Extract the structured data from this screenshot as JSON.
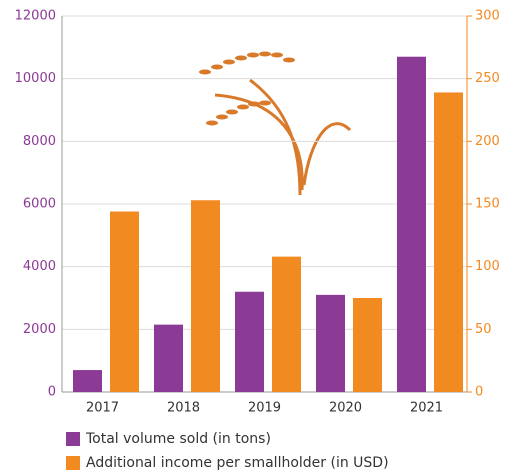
{
  "chart_data": {
    "type": "bar",
    "categories": [
      "2017",
      "2018",
      "2019",
      "2020",
      "2021"
    ],
    "series": [
      {
        "name": "Total volume sold (in tons)",
        "color": "#8b3a96",
        "values": [
          700,
          2150,
          3200,
          3100,
          10700
        ]
      },
      {
        "name": "Additional income per smallholder (in USD)",
        "color": "#f28a22",
        "axis": "y2",
        "values": [
          144,
          153,
          108,
          75,
          239
        ]
      }
    ],
    "ylim": [
      0,
      12000
    ],
    "yticks": [
      0,
      2000,
      4000,
      6000,
      8000,
      10000,
      12000
    ],
    "y2lim": [
      0,
      300
    ],
    "y2ticks": [
      0,
      50,
      100,
      150,
      200,
      250,
      300
    ],
    "grid": true,
    "legend": "bottom"
  }
}
